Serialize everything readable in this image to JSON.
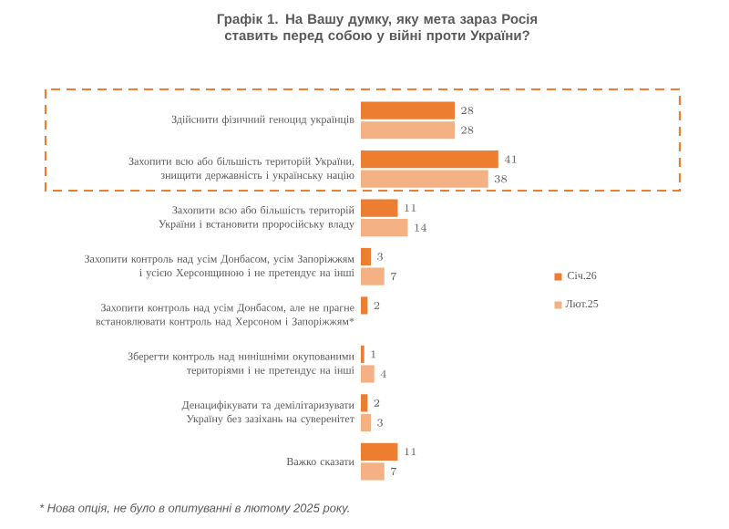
{
  "chart_data": {
    "type": "bar",
    "orientation": "horizontal",
    "title": "Графік 1. На Вашу думку, яку мета зараз Росія ставить перед собою у війні проти України?",
    "categories": [
      "Здійснити фізичний геноцид українців",
      "Захопити всю або більшість територій України, знищити державність і українську націю",
      "Захопити всю або більшість територій України і встановити проросійську владу",
      "Захопити контроль над усім Донбасом, усім Запоріжжям і усією Херсонщиною і не претендує на інші",
      "Захопити контроль над усім Донбасом, але не прагне встановлювати контроль над Херсоном і Запоріжжям*",
      "Зберегти контроль над нинішніми окупованими територіями і не претендує на інші",
      "Денацифікувати та демілітаризувати Україну без зазіхань на суверенітет",
      "Важко сказати"
    ],
    "series": [
      {
        "name": "Січ.26",
        "color": "#ed7d31",
        "values": [
          28,
          41,
          11,
          3,
          2,
          1,
          2,
          11
        ]
      },
      {
        "name": "Лют.25",
        "color": "#f4b183",
        "values": [
          28,
          38,
          14,
          7,
          null,
          4,
          3,
          7
        ]
      }
    ],
    "data_labels": true,
    "legend": "right",
    "annotations": [
      "* Нова опція, не було в опитуванні в лютому 2025 року."
    ]
  }
}
